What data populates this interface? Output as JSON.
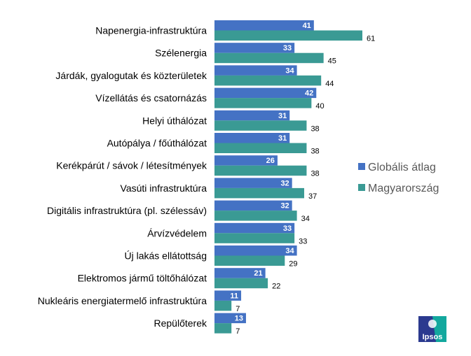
{
  "chart_data": {
    "type": "bar",
    "orientation": "horizontal",
    "categories": [
      "Napenergia-infrastruktúra",
      "Szélenergia",
      "Járdák, gyalogutak és közterületek",
      "Vízellátás és csatornázás",
      "Helyi úthálózat",
      "Autópálya / főúthálózat",
      "Kerékpárút / sávok / létesítmények",
      "Vasúti infrastruktúra",
      "Digitális infrastruktúra (pl. szélessáv)",
      "Árvízvédelem",
      "Új lakás ellátottság",
      "Elektromos jármű töltőhálózat",
      "Nukleáris energiatermelő infrastruktúra",
      "Repülőterek"
    ],
    "series": [
      {
        "name": "Globális átlag",
        "color": "#4472C4",
        "values": [
          41,
          33,
          34,
          42,
          31,
          31,
          26,
          32,
          32,
          33,
          34,
          21,
          11,
          13
        ]
      },
      {
        "name": "Magyarország",
        "color": "#3A9A94",
        "values": [
          61,
          45,
          44,
          40,
          38,
          38,
          38,
          37,
          34,
          33,
          29,
          22,
          7,
          7
        ]
      }
    ],
    "xlim": [
      0,
      61
    ],
    "grid": false,
    "legend_position": "right"
  },
  "logo": {
    "text": "Ipsos"
  }
}
